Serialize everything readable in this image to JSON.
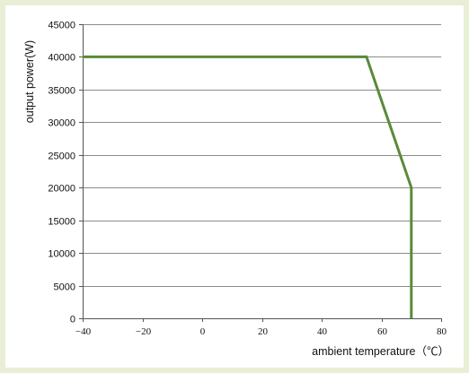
{
  "chart_data": {
    "type": "line",
    "title": "",
    "xlabel": "ambient temperature（℃）",
    "ylabel": "output power(W)",
    "xlim": [
      -40,
      80
    ],
    "ylim": [
      0,
      45000
    ],
    "x_ticks": [
      -40,
      -20,
      0,
      20,
      40,
      60,
      80
    ],
    "y_ticks": [
      0,
      5000,
      10000,
      15000,
      20000,
      25000,
      30000,
      35000,
      40000,
      45000
    ],
    "x_tick_labels": [
      "−40",
      "−20",
      "0",
      "20",
      "40",
      "60",
      "80"
    ],
    "y_tick_labels": [
      "0",
      "5000",
      "10000",
      "15000",
      "20000",
      "25000",
      "30000",
      "35000",
      "40000",
      "45000"
    ],
    "grid": "horizontal",
    "legend": "none",
    "series": [
      {
        "color": "#5a8a3a",
        "x": [
          -40,
          55,
          70,
          70
        ],
        "y": [
          40000,
          40000,
          20000,
          0
        ]
      }
    ]
  }
}
